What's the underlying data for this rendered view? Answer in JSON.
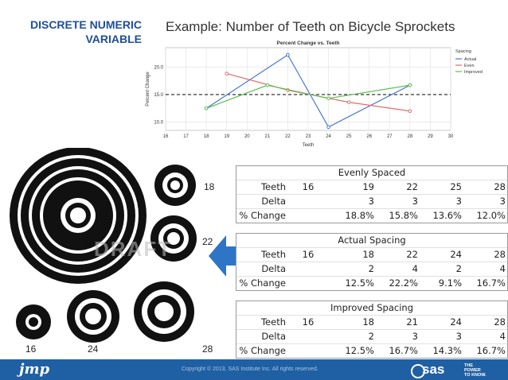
{
  "header": {
    "section_line1": "DISCRETE NUMERIC",
    "section_line2": "VARIABLE",
    "title": "Example: Number of Teeth on Bicycle Sprockets"
  },
  "chart_data": {
    "type": "line",
    "title": "Percent Change vs. Teeth",
    "xlabel": "Teeth",
    "ylabel": "Percent Change",
    "xlim": [
      16,
      30
    ],
    "ylim": [
      8.5,
      23.5
    ],
    "xticks": [
      16,
      17,
      18,
      19,
      20,
      21,
      22,
      23,
      24,
      25,
      26,
      27,
      28,
      29,
      30
    ],
    "yticks": [
      10.0,
      15.0,
      20.0
    ],
    "reference_line": 15.0,
    "legend_title": "Spacing",
    "legend_position": "top-right",
    "grid": true,
    "series": [
      {
        "name": "Actual",
        "color": "#4a78d8",
        "x": [
          18,
          22,
          24,
          28
        ],
        "y": [
          12.5,
          22.2,
          9.1,
          16.7
        ]
      },
      {
        "name": "Even",
        "color": "#e06b6b",
        "x": [
          19,
          22,
          25,
          28
        ],
        "y": [
          18.8,
          15.8,
          13.6,
          12.0
        ]
      },
      {
        "name": "Improved",
        "color": "#5cbf4e",
        "x": [
          18,
          21,
          24,
          28
        ],
        "y": [
          12.5,
          16.7,
          14.3,
          16.7
        ]
      }
    ]
  },
  "tables": [
    {
      "title": "Evenly Spaced",
      "rows": [
        [
          "Teeth",
          "16",
          "19",
          "22",
          "25",
          "28"
        ],
        [
          "Delta",
          "",
          "3",
          "3",
          "3",
          "3"
        ],
        [
          "% Change",
          "",
          "18.8%",
          "15.8%",
          "13.6%",
          "12.0%"
        ]
      ]
    },
    {
      "title": "Actual Spacing",
      "rows": [
        [
          "Teeth",
          "16",
          "18",
          "22",
          "24",
          "28"
        ],
        [
          "Delta",
          "",
          "2",
          "4",
          "2",
          "4"
        ],
        [
          "% Change",
          "",
          "12.5%",
          "22.2%",
          "9.1%",
          "16.7%"
        ]
      ]
    },
    {
      "title": "Improved Spacing",
      "rows": [
        [
          "Teeth",
          "16",
          "18",
          "21",
          "24",
          "28"
        ],
        [
          "Delta",
          "",
          "2",
          "3",
          "3",
          "4"
        ],
        [
          "% Change",
          "",
          "12.5%",
          "16.7%",
          "14.3%",
          "16.7%"
        ]
      ]
    }
  ],
  "gears": {
    "label_18": "18",
    "label_22": "22",
    "label_16": "16",
    "label_24": "24",
    "label_28": "28",
    "watermark": "DRAFT"
  },
  "footer": {
    "brand": "jmp",
    "copyright": "Copyright © 2013, SAS Institute Inc. All rights reserved.",
    "sas": "sas",
    "tagline_1": "THE",
    "tagline_2": "POWER",
    "tagline_3": "TO KNOW."
  },
  "colors": {
    "accent": "#1f4e9c",
    "footer": "#1f5fa3",
    "arrow": "#2e75c8",
    "reference_line": "#222222"
  }
}
